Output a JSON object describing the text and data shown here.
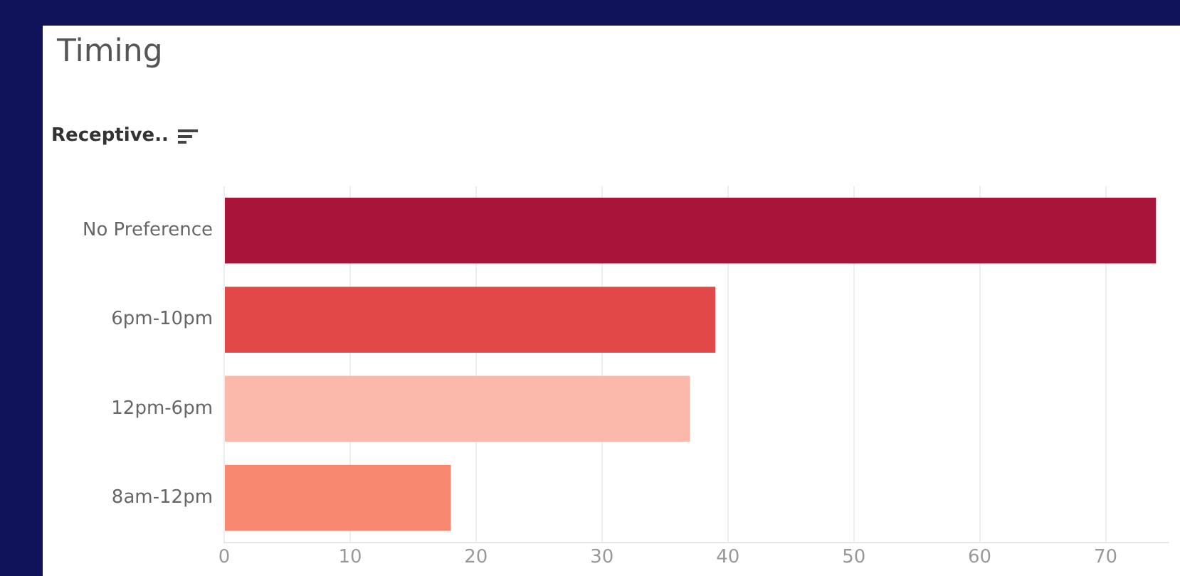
{
  "chart_data": {
    "type": "bar",
    "orientation": "horizontal",
    "title": "Timing",
    "ylabel": "Receptive..",
    "categories": [
      "No Preference",
      "6pm-10pm",
      "12pm-6pm",
      "8am-12pm"
    ],
    "values": [
      74,
      39,
      37,
      18
    ],
    "colors": [
      "#a8143a",
      "#e34848",
      "#fbb9ac",
      "#f88870"
    ],
    "xlim": [
      0,
      75
    ],
    "xticks": [
      0,
      10,
      20,
      30,
      40,
      50,
      60,
      70
    ],
    "grid": "x",
    "legend": false
  }
}
